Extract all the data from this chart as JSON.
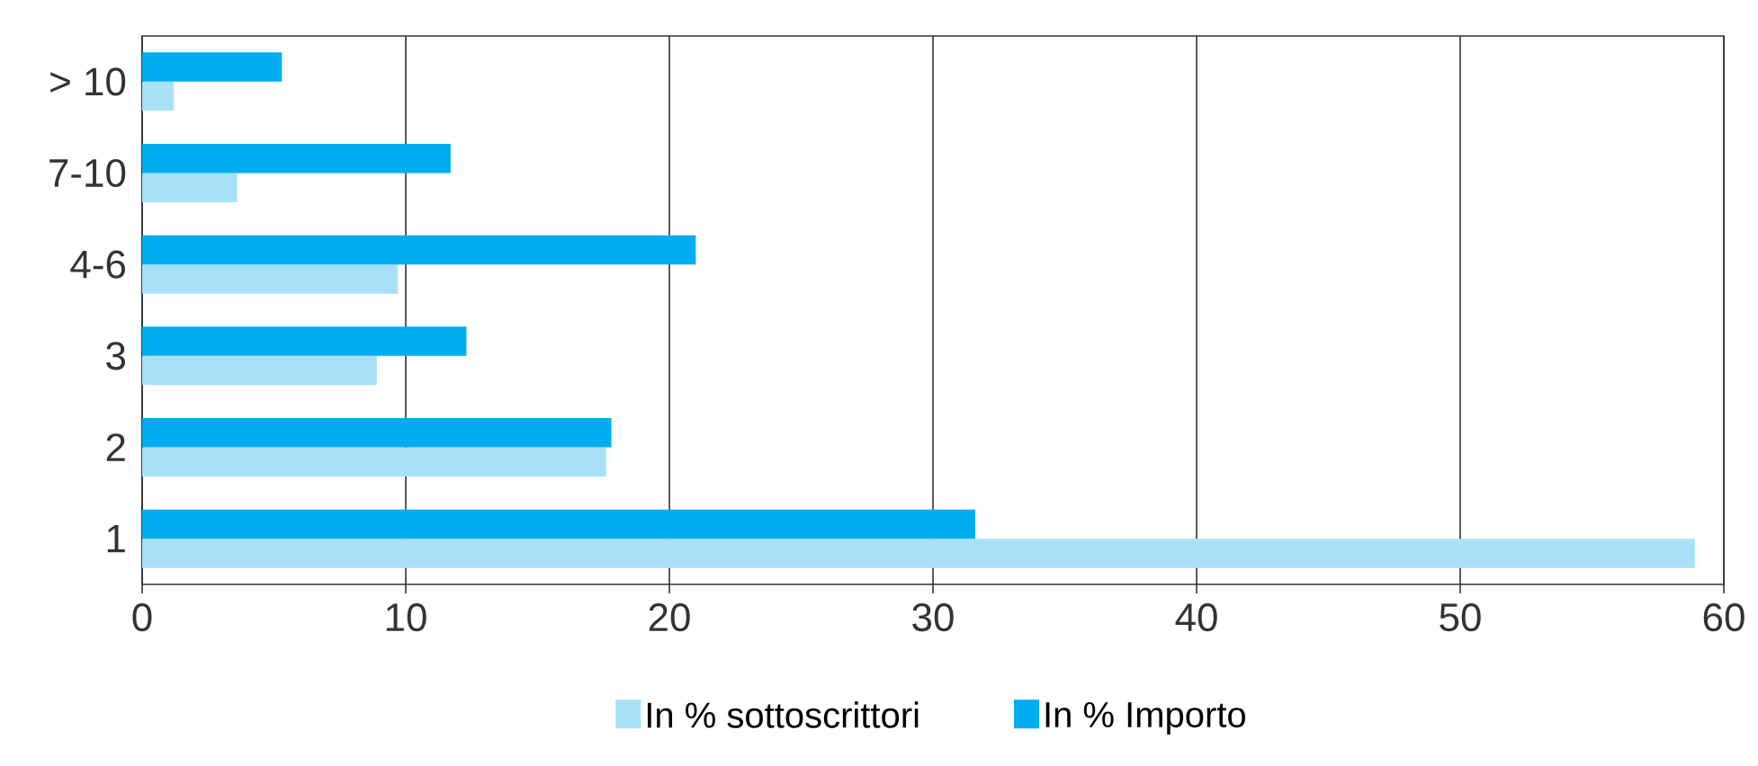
{
  "chart_data": {
    "type": "bar",
    "orientation": "horizontal",
    "categories": [
      "> 10",
      "7-10",
      "4-6",
      "3",
      "2",
      "1"
    ],
    "series": [
      {
        "name": "In % sottoscrittori",
        "color": "#a8e0f8",
        "values": [
          1.2,
          3.6,
          9.7,
          8.9,
          17.6,
          58.9
        ]
      },
      {
        "name": "In % Importo",
        "color": "#00adee",
        "values": [
          5.3,
          11.7,
          21.0,
          12.3,
          17.8,
          31.6
        ]
      }
    ],
    "xlim": [
      0,
      60
    ],
    "xticks": [
      0,
      10,
      20,
      30,
      40,
      50,
      60
    ],
    "grid": "x",
    "legend": "bottom"
  }
}
